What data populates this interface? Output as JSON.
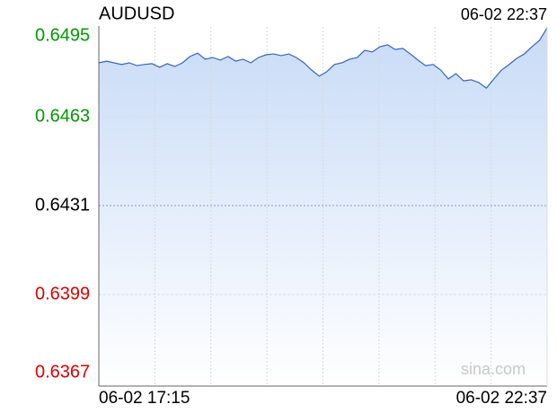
{
  "chart_data": {
    "type": "line",
    "title": "AUDUSD",
    "timestamp": "06-02 22:37",
    "watermark": "sina.com",
    "categories": [
      "06-02 17:15",
      null,
      null,
      null,
      null,
      null,
      null,
      null,
      null,
      null,
      null,
      null,
      null,
      null,
      null,
      null,
      null,
      null,
      null,
      null,
      null,
      null,
      null,
      null,
      null,
      null,
      null,
      null,
      null,
      null,
      null,
      null,
      null,
      null,
      null,
      null,
      null,
      null,
      null,
      null,
      null,
      null,
      null,
      null,
      null,
      null,
      null,
      null,
      null,
      null,
      null,
      null,
      null,
      null,
      null,
      null,
      null,
      null,
      null,
      "06-02 22:37"
    ],
    "values": [
      0.64824,
      0.6483,
      0.64824,
      0.64818,
      0.64824,
      0.64814,
      0.64818,
      0.64821,
      0.64808,
      0.64821,
      0.64811,
      0.64824,
      0.64847,
      0.64859,
      0.64837,
      0.64843,
      0.64834,
      0.64847,
      0.6483,
      0.64837,
      0.64824,
      0.64843,
      0.64853,
      0.64856,
      0.6485,
      0.64856,
      0.64843,
      0.64824,
      0.64798,
      0.64776,
      0.64792,
      0.64818,
      0.64824,
      0.64837,
      0.64843,
      0.64869,
      0.64863,
      0.64882,
      0.64889,
      0.64872,
      0.64876,
      0.64856,
      0.64834,
      0.64814,
      0.64818,
      0.64798,
      0.64766,
      0.64785,
      0.64759,
      0.64763,
      0.64753,
      0.64733,
      0.64766,
      0.64798,
      0.64818,
      0.6484,
      0.64856,
      0.64882,
      0.64905,
      0.6495
    ],
    "color": "#3566b8",
    "fill_color": "#c8dbf7",
    "ylim": [
      0.6367,
      0.6495
    ],
    "yticks": [
      0.6495,
      0.6463,
      0.6431,
      0.6399,
      0.6367
    ],
    "ytick_colors": [
      "#009900",
      "#009900",
      "#000000",
      "#dd0000",
      "#dd0000"
    ],
    "grid_styles": [
      "solid",
      "solid",
      "dashed",
      "solid",
      "solid"
    ],
    "grid": true
  }
}
